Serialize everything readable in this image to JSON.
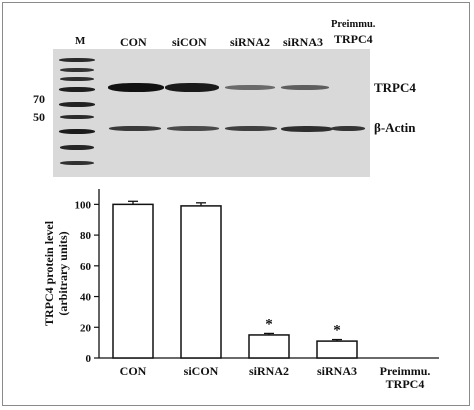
{
  "blot": {
    "marker_lane_label": "M",
    "lanes": [
      "CON",
      "siCON",
      "siRNA2",
      "siRNA3"
    ],
    "preimmune_line1": "Preimmu.",
    "preimmune_line2": "TRPC4",
    "mw_markers": [
      "70",
      "50"
    ],
    "band_trpc4_label": "TRPC4",
    "band_actin_label": "β-Actin",
    "trpc4_band_intensity": [
      1.0,
      0.95,
      0.35,
      0.3,
      0.0
    ],
    "actin_band_intensity": [
      0.7,
      0.6,
      0.65,
      0.75,
      0.7
    ]
  },
  "chart_data": {
    "type": "bar",
    "categories": [
      "CON",
      "siCON",
      "siRNA2",
      "siRNA3",
      "Preimmu.\nTRPC4"
    ],
    "values": [
      100,
      99,
      15,
      11,
      0
    ],
    "errors": [
      2,
      2,
      1,
      1,
      0
    ],
    "significance": [
      "",
      "",
      "*",
      "*",
      ""
    ],
    "ylabel_line1": "TRPC4 protein level",
    "ylabel_line2": "(arbitrary units)",
    "ylim": [
      0,
      110
    ],
    "yticks": [
      0,
      20,
      40,
      60,
      80,
      100
    ],
    "ytick_labels": [
      "0",
      "20",
      "40",
      "60",
      "80",
      "100"
    ],
    "grid": false,
    "bar_fill": "#ffffff",
    "bar_stroke": "#111111"
  }
}
